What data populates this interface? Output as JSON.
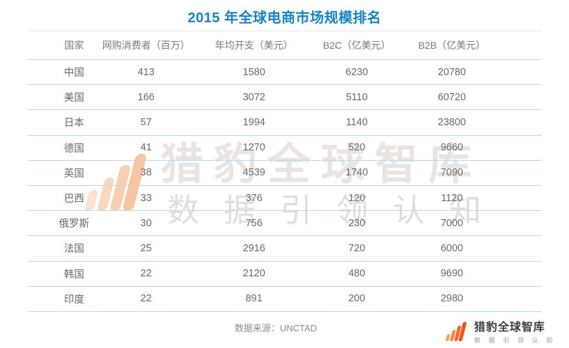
{
  "title": "2015 年全球电商市场规模排名",
  "table": {
    "columns": [
      "国家",
      "网购消费者（百万）",
      "年均开支（美元）",
      "B2C（亿美元）",
      "B2B（亿美元）"
    ],
    "rows": [
      [
        "中国",
        "413",
        "1580",
        "6230",
        "20780"
      ],
      [
        "美国",
        "166",
        "3072",
        "5110",
        "60720"
      ],
      [
        "日本",
        "57",
        "1994",
        "1140",
        "23800"
      ],
      [
        "德国",
        "41",
        "1270",
        "520",
        "9660"
      ],
      [
        "英国",
        "38",
        "4539",
        "1740",
        "7090"
      ],
      [
        "巴西",
        "33",
        "376",
        "120",
        "1120"
      ],
      [
        "俄罗斯",
        "30",
        "756",
        "230",
        "7000"
      ],
      [
        "法国",
        "25",
        "2916",
        "720",
        "6000"
      ],
      [
        "韩国",
        "22",
        "2120",
        "480",
        "9690"
      ],
      [
        "印度",
        "22",
        "891",
        "200",
        "2980"
      ]
    ]
  },
  "source_label": "数据来源：UNCTAD",
  "watermark": {
    "brand": "猎豹全球智库",
    "tagline": "数据引领认知"
  },
  "logo": {
    "brand": "猎豹全球智库",
    "tagline": "数 据 引 领 认 知"
  },
  "colors": {
    "title_blue": "#1583c6",
    "row_line_blue": "#bdd8ec",
    "text_gray": "#67696c",
    "logo_orange_dark": "#ee5517",
    "logo_orange_light": "#f7a265"
  },
  "chart_data": {
    "type": "table",
    "title": "2015 年全球电商市场规模排名",
    "columns": [
      "国家",
      "网购消费者（百万）",
      "年均开支（美元）",
      "B2C（亿美元）",
      "B2B（亿美元）"
    ],
    "rows": [
      {
        "country": "中国",
        "online_shoppers_millions": 413,
        "annual_spend_usd": 1580,
        "b2c_100m_usd": 6230,
        "b2b_100m_usd": 20780
      },
      {
        "country": "美国",
        "online_shoppers_millions": 166,
        "annual_spend_usd": 3072,
        "b2c_100m_usd": 5110,
        "b2b_100m_usd": 60720
      },
      {
        "country": "日本",
        "online_shoppers_millions": 57,
        "annual_spend_usd": 1994,
        "b2c_100m_usd": 1140,
        "b2b_100m_usd": 23800
      },
      {
        "country": "德国",
        "online_shoppers_millions": 41,
        "annual_spend_usd": 1270,
        "b2c_100m_usd": 520,
        "b2b_100m_usd": 9660
      },
      {
        "country": "英国",
        "online_shoppers_millions": 38,
        "annual_spend_usd": 4539,
        "b2c_100m_usd": 1740,
        "b2b_100m_usd": 7090
      },
      {
        "country": "巴西",
        "online_shoppers_millions": 33,
        "annual_spend_usd": 376,
        "b2c_100m_usd": 120,
        "b2b_100m_usd": 1120
      },
      {
        "country": "俄罗斯",
        "online_shoppers_millions": 30,
        "annual_spend_usd": 756,
        "b2c_100m_usd": 230,
        "b2b_100m_usd": 7000
      },
      {
        "country": "法国",
        "online_shoppers_millions": 25,
        "annual_spend_usd": 2916,
        "b2c_100m_usd": 720,
        "b2b_100m_usd": 6000
      },
      {
        "country": "韩国",
        "online_shoppers_millions": 22,
        "annual_spend_usd": 2120,
        "b2c_100m_usd": 480,
        "b2b_100m_usd": 9690
      },
      {
        "country": "印度",
        "online_shoppers_millions": 22,
        "annual_spend_usd": 891,
        "b2c_100m_usd": 200,
        "b2b_100m_usd": 2980
      }
    ],
    "source": "UNCTAD"
  }
}
